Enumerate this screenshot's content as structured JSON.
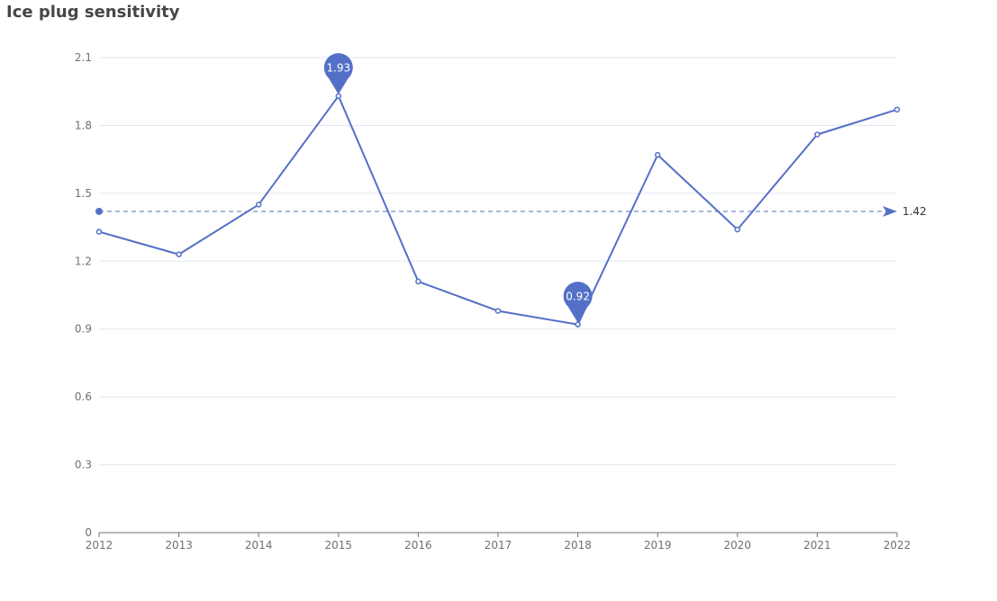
{
  "chart_data": {
    "type": "line",
    "title": "Ice plug sensitivity",
    "categories": [
      "2012",
      "2013",
      "2014",
      "2015",
      "2016",
      "2017",
      "2018",
      "2019",
      "2020",
      "2021",
      "2022"
    ],
    "series": [
      {
        "values": [
          1.33,
          1.23,
          1.45,
          1.93,
          1.11,
          0.98,
          0.92,
          1.67,
          1.34,
          1.76,
          1.87
        ]
      }
    ],
    "ylim": [
      0,
      2.1
    ],
    "yticks": [
      "0",
      "0.3",
      "0.6",
      "0.9",
      "1.2",
      "1.5",
      "1.8",
      "2.1"
    ],
    "mark_points": [
      {
        "label": "1.93",
        "category": "2015",
        "value": 1.93
      },
      {
        "label": "0.92",
        "category": "2018",
        "value": 0.92
      }
    ],
    "mark_line": {
      "label": "1.42",
      "value": 1.42
    },
    "grid": true,
    "color": "#5470c6"
  }
}
